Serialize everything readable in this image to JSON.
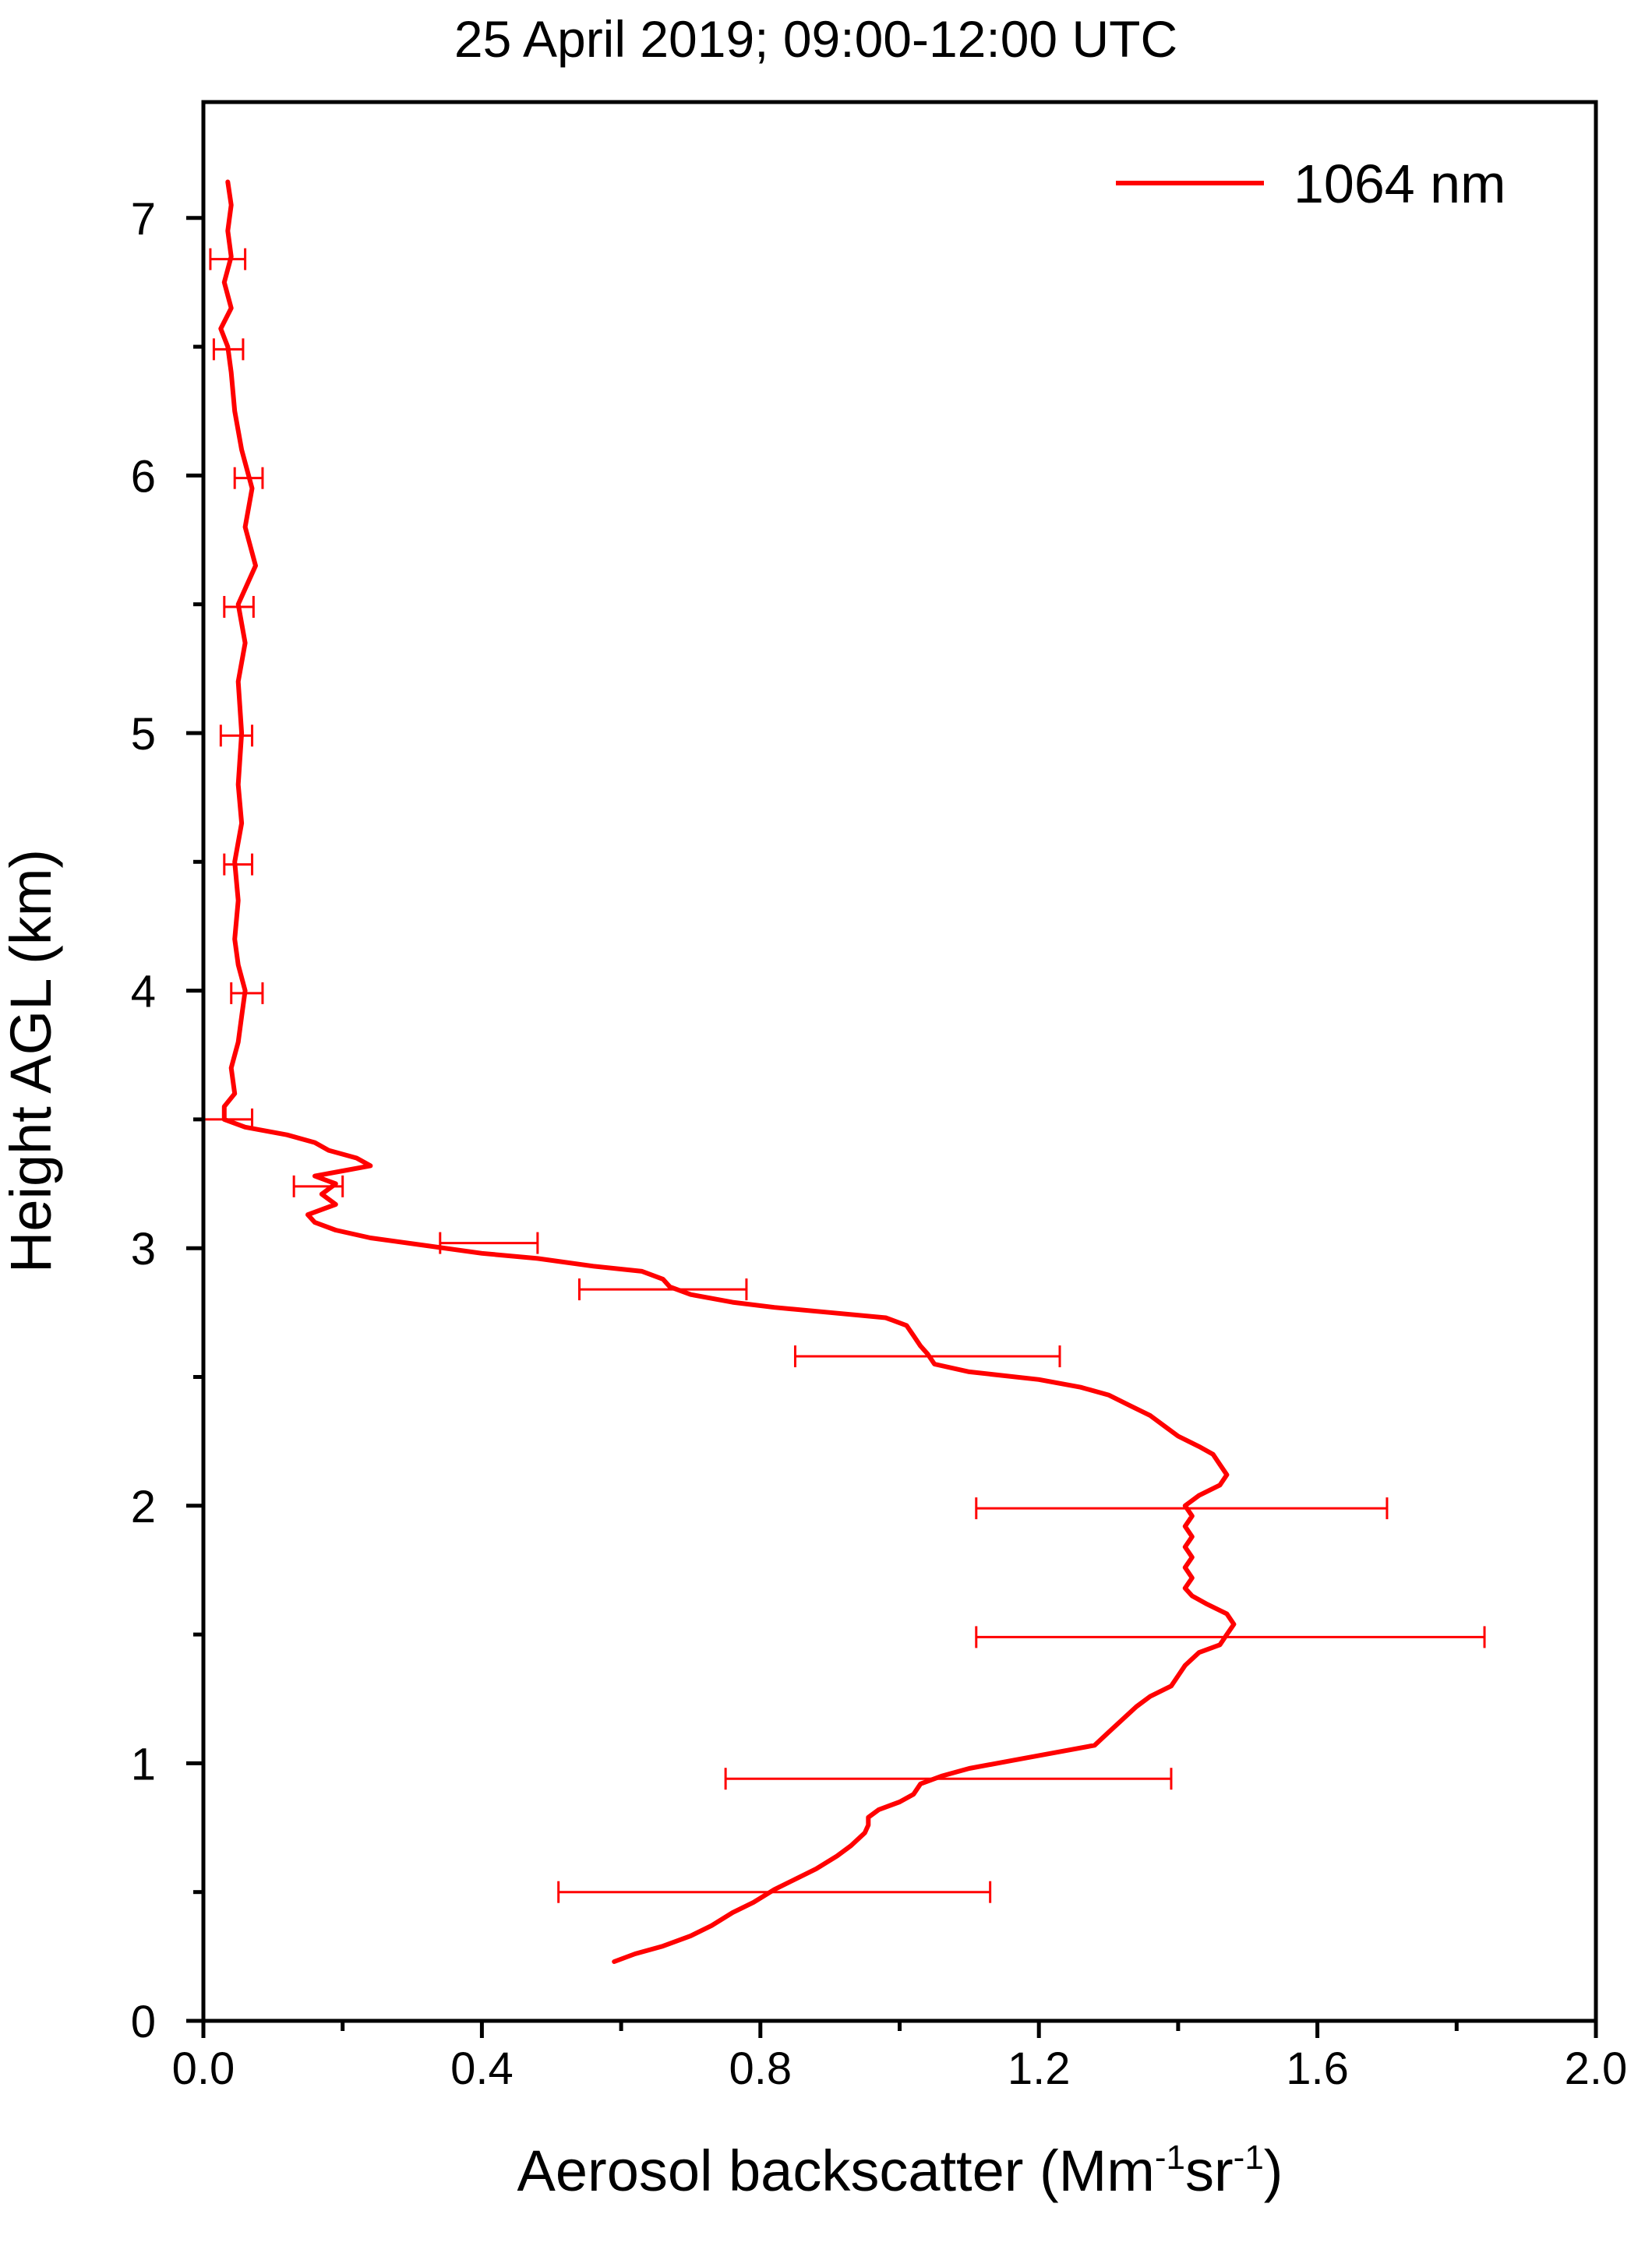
{
  "chart_data": {
    "type": "line",
    "title": "25 April 2019; 09:00-12:00 UTC",
    "xlabel": {
      "parts": [
        {
          "text": "Aerosol backscatter (Mm",
          "sup": false
        },
        {
          "text": "-1",
          "sup": true
        },
        {
          "text": "sr",
          "sup": false
        },
        {
          "text": "-1",
          "sup": true
        },
        {
          "text": ")",
          "sup": false
        }
      ]
    },
    "ylabel": "Height AGL (km)",
    "xlim": [
      0.0,
      2.0
    ],
    "ylim": [
      0.0,
      7.45
    ],
    "x_ticks": [
      0.0,
      0.4,
      0.8,
      1.2,
      1.6,
      2.0
    ],
    "x_tick_labels": [
      "0.0",
      "0.4",
      "0.8",
      "1.2",
      "1.6",
      "2.0"
    ],
    "x_minor_ticks": [
      0.2,
      0.6,
      1.0,
      1.4,
      1.8
    ],
    "y_ticks": [
      0,
      1,
      2,
      3,
      4,
      5,
      6,
      7
    ],
    "y_tick_labels": [
      "0",
      "1",
      "2",
      "3",
      "4",
      "5",
      "6",
      "7"
    ],
    "y_minor_ticks": [
      0.5,
      1.5,
      2.5,
      3.5,
      4.5,
      5.5,
      6.5
    ],
    "grid": false,
    "legend_position": "top-right",
    "series": [
      {
        "name": "1064 nm",
        "color": "#ff0000",
        "points": [
          [
            0.59,
            0.23
          ],
          [
            0.62,
            0.26
          ],
          [
            0.66,
            0.29
          ],
          [
            0.7,
            0.33
          ],
          [
            0.73,
            0.37
          ],
          [
            0.76,
            0.42
          ],
          [
            0.79,
            0.46
          ],
          [
            0.82,
            0.51
          ],
          [
            0.85,
            0.55
          ],
          [
            0.88,
            0.59
          ],
          [
            0.91,
            0.64
          ],
          [
            0.93,
            0.68
          ],
          [
            0.95,
            0.73
          ],
          [
            0.955,
            0.76
          ],
          [
            0.955,
            0.79
          ],
          [
            0.97,
            0.82
          ],
          [
            1.0,
            0.85
          ],
          [
            1.02,
            0.88
          ],
          [
            1.03,
            0.92
          ],
          [
            1.06,
            0.95
          ],
          [
            1.1,
            0.98
          ],
          [
            1.16,
            1.01
          ],
          [
            1.22,
            1.04
          ],
          [
            1.28,
            1.07
          ],
          [
            1.3,
            1.12
          ],
          [
            1.32,
            1.17
          ],
          [
            1.34,
            1.22
          ],
          [
            1.36,
            1.26
          ],
          [
            1.39,
            1.3
          ],
          [
            1.4,
            1.34
          ],
          [
            1.41,
            1.38
          ],
          [
            1.43,
            1.43
          ],
          [
            1.46,
            1.46
          ],
          [
            1.47,
            1.5
          ],
          [
            1.48,
            1.54
          ],
          [
            1.47,
            1.58
          ],
          [
            1.44,
            1.62
          ],
          [
            1.42,
            1.65
          ],
          [
            1.41,
            1.68
          ],
          [
            1.42,
            1.72
          ],
          [
            1.41,
            1.76
          ],
          [
            1.42,
            1.8
          ],
          [
            1.41,
            1.84
          ],
          [
            1.42,
            1.88
          ],
          [
            1.41,
            1.92
          ],
          [
            1.42,
            1.96
          ],
          [
            1.41,
            2.0
          ],
          [
            1.43,
            2.04
          ],
          [
            1.46,
            2.08
          ],
          [
            1.47,
            2.12
          ],
          [
            1.46,
            2.16
          ],
          [
            1.45,
            2.2
          ],
          [
            1.43,
            2.23
          ],
          [
            1.4,
            2.27
          ],
          [
            1.38,
            2.31
          ],
          [
            1.36,
            2.35
          ],
          [
            1.33,
            2.39
          ],
          [
            1.3,
            2.43
          ],
          [
            1.26,
            2.46
          ],
          [
            1.2,
            2.49
          ],
          [
            1.1,
            2.52
          ],
          [
            1.05,
            2.55
          ],
          [
            1.04,
            2.59
          ],
          [
            1.03,
            2.62
          ],
          [
            1.02,
            2.66
          ],
          [
            1.01,
            2.7
          ],
          [
            0.98,
            2.73
          ],
          [
            0.9,
            2.75
          ],
          [
            0.82,
            2.77
          ],
          [
            0.76,
            2.79
          ],
          [
            0.7,
            2.82
          ],
          [
            0.67,
            2.85
          ],
          [
            0.66,
            2.88
          ],
          [
            0.63,
            2.91
          ],
          [
            0.56,
            2.93
          ],
          [
            0.48,
            2.96
          ],
          [
            0.4,
            2.98
          ],
          [
            0.32,
            3.01
          ],
          [
            0.24,
            3.04
          ],
          [
            0.19,
            3.07
          ],
          [
            0.16,
            3.1
          ],
          [
            0.15,
            3.13
          ],
          [
            0.19,
            3.17
          ],
          [
            0.17,
            3.21
          ],
          [
            0.19,
            3.25
          ],
          [
            0.16,
            3.28
          ],
          [
            0.2,
            3.3
          ],
          [
            0.24,
            3.32
          ],
          [
            0.22,
            3.35
          ],
          [
            0.18,
            3.38
          ],
          [
            0.16,
            3.41
          ],
          [
            0.12,
            3.44
          ],
          [
            0.06,
            3.47
          ],
          [
            0.03,
            3.5
          ],
          [
            0.03,
            3.55
          ],
          [
            0.045,
            3.6
          ],
          [
            0.04,
            3.7
          ],
          [
            0.05,
            3.8
          ],
          [
            0.055,
            3.9
          ],
          [
            0.06,
            4.0
          ],
          [
            0.05,
            4.1
          ],
          [
            0.045,
            4.2
          ],
          [
            0.05,
            4.35
          ],
          [
            0.045,
            4.5
          ],
          [
            0.055,
            4.65
          ],
          [
            0.05,
            4.8
          ],
          [
            0.055,
            5.0
          ],
          [
            0.05,
            5.2
          ],
          [
            0.06,
            5.35
          ],
          [
            0.05,
            5.5
          ],
          [
            0.075,
            5.65
          ],
          [
            0.06,
            5.8
          ],
          [
            0.07,
            5.95
          ],
          [
            0.055,
            6.1
          ],
          [
            0.045,
            6.25
          ],
          [
            0.04,
            6.4
          ],
          [
            0.035,
            6.5
          ],
          [
            0.025,
            6.57
          ],
          [
            0.04,
            6.65
          ],
          [
            0.03,
            6.75
          ],
          [
            0.04,
            6.85
          ],
          [
            0.035,
            6.95
          ],
          [
            0.04,
            7.05
          ],
          [
            0.035,
            7.14
          ]
        ]
      }
    ],
    "error_bars": [
      {
        "y": 0.5,
        "x_low": 0.51,
        "x_high": 1.13
      },
      {
        "y": 0.94,
        "x_low": 0.75,
        "x_high": 1.39
      },
      {
        "y": 1.49,
        "x_low": 1.11,
        "x_high": 1.84
      },
      {
        "y": 1.99,
        "x_low": 1.11,
        "x_high": 1.7
      },
      {
        "y": 2.58,
        "x_low": 0.85,
        "x_high": 1.23
      },
      {
        "y": 2.84,
        "x_low": 0.54,
        "x_high": 0.78
      },
      {
        "y": 3.02,
        "x_low": 0.34,
        "x_high": 0.48
      },
      {
        "y": 3.24,
        "x_low": 0.13,
        "x_high": 0.2
      },
      {
        "y": 3.5,
        "x_low": 0.0,
        "x_high": 0.07
      },
      {
        "y": 3.99,
        "x_low": 0.04,
        "x_high": 0.085
      },
      {
        "y": 4.49,
        "x_low": 0.03,
        "x_high": 0.07
      },
      {
        "y": 4.99,
        "x_low": 0.025,
        "x_high": 0.07
      },
      {
        "y": 5.49,
        "x_low": 0.03,
        "x_high": 0.072
      },
      {
        "y": 5.99,
        "x_low": 0.045,
        "x_high": 0.085
      },
      {
        "y": 6.49,
        "x_low": 0.015,
        "x_high": 0.057
      },
      {
        "y": 6.84,
        "x_low": 0.01,
        "x_high": 0.06
      }
    ]
  }
}
